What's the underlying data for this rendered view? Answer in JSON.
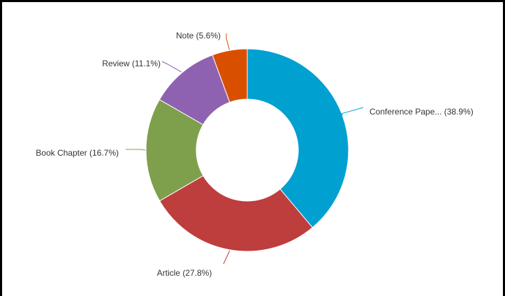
{
  "chart_data": {
    "type": "pie",
    "donut": true,
    "start_angle_deg": 0,
    "direction": "clockwise",
    "legend": "none",
    "slices": [
      {
        "label": "Conference Pape... (38.9%)",
        "value": 38.9,
        "color": "#00a0d1"
      },
      {
        "label": "Article (27.8%)",
        "value": 27.8,
        "color": "#be3d3d"
      },
      {
        "label": "Book Chapter (16.7%)",
        "value": 16.7,
        "color": "#7ea04d"
      },
      {
        "label": "Review (11.1%)",
        "value": 11.1,
        "color": "#8e62b0"
      },
      {
        "label": "Note (5.6%)",
        "value": 5.6,
        "color": "#d94f00"
      }
    ]
  }
}
